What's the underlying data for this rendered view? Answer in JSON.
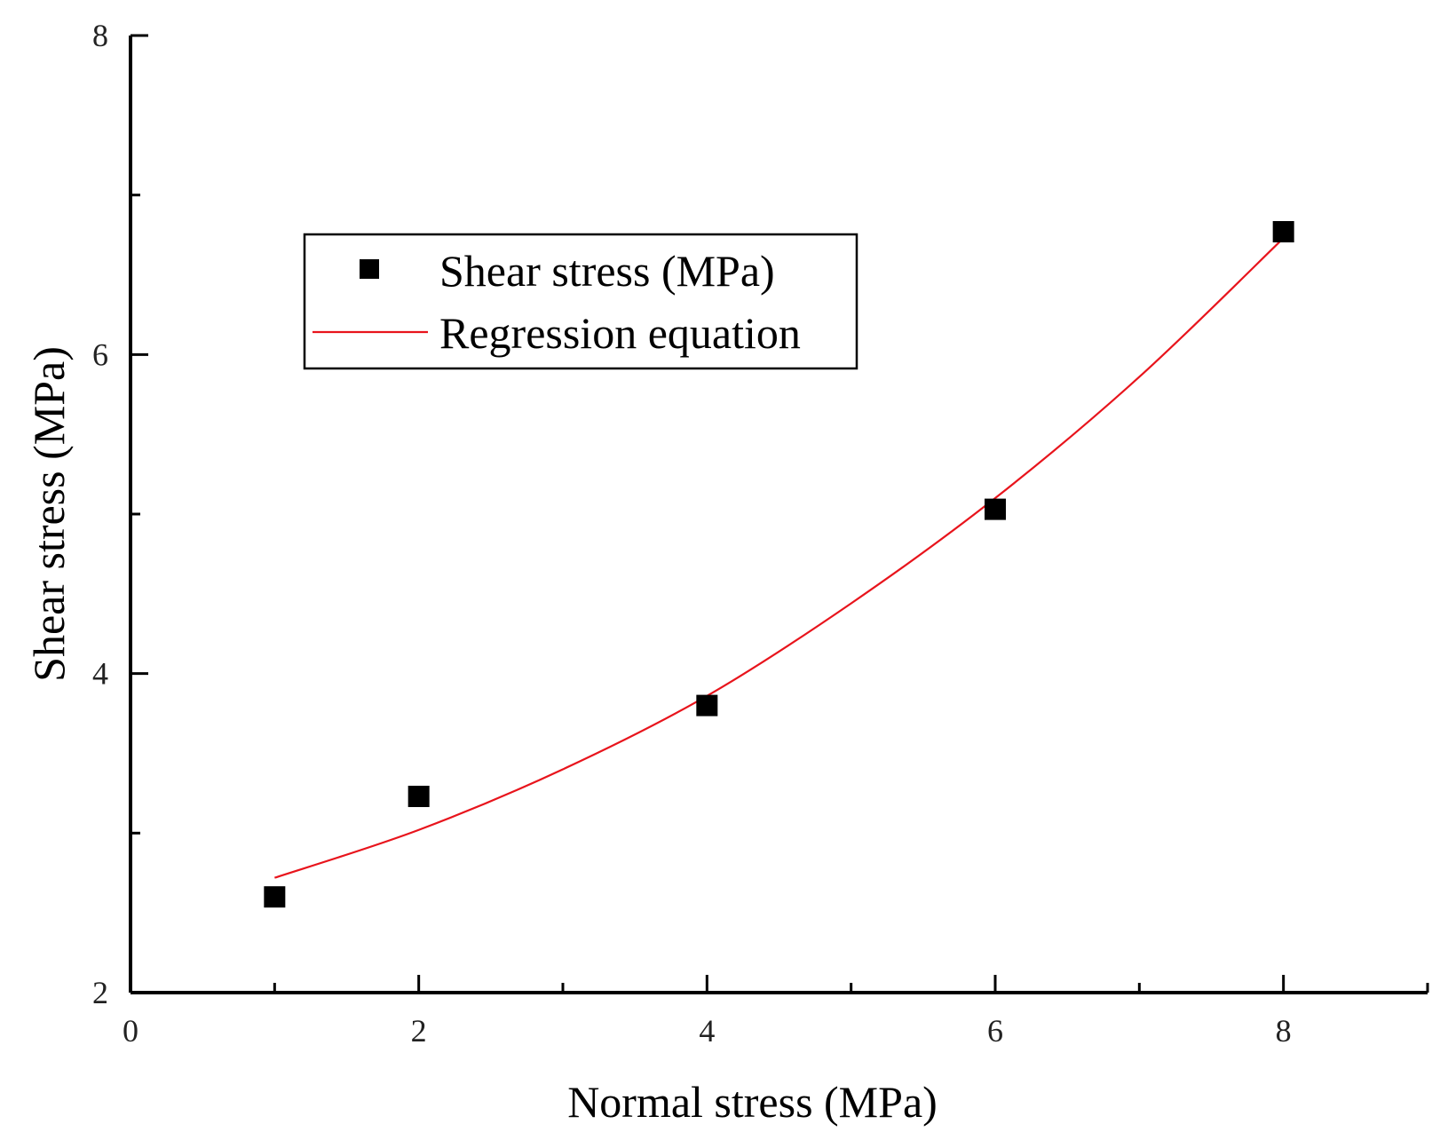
{
  "chart_data": {
    "type": "scatter",
    "title": "",
    "xlabel": "Normal stress (MPa)",
    "ylabel": "Shear stress (MPa)",
    "xlim": [
      0,
      9
    ],
    "ylim": [
      2,
      8
    ],
    "xticks": [
      0,
      2,
      4,
      6,
      8
    ],
    "yticks": [
      2,
      4,
      6,
      8
    ],
    "grid": false,
    "legend_position": "top-left",
    "series": [
      {
        "name": "Shear stress (MPa)",
        "kind": "scatter",
        "marker": "square",
        "color": "#000000",
        "x": [
          1,
          2,
          4,
          6,
          8
        ],
        "y": [
          2.6,
          3.23,
          3.8,
          5.03,
          6.77
        ]
      },
      {
        "name": "Regression equation",
        "kind": "line",
        "color": "#e8141c",
        "x": [
          1,
          2,
          3,
          4,
          5,
          6,
          7,
          8
        ],
        "y": [
          2.72,
          3.02,
          3.4,
          3.86,
          4.44,
          5.1,
          5.86,
          6.73
        ]
      }
    ]
  }
}
